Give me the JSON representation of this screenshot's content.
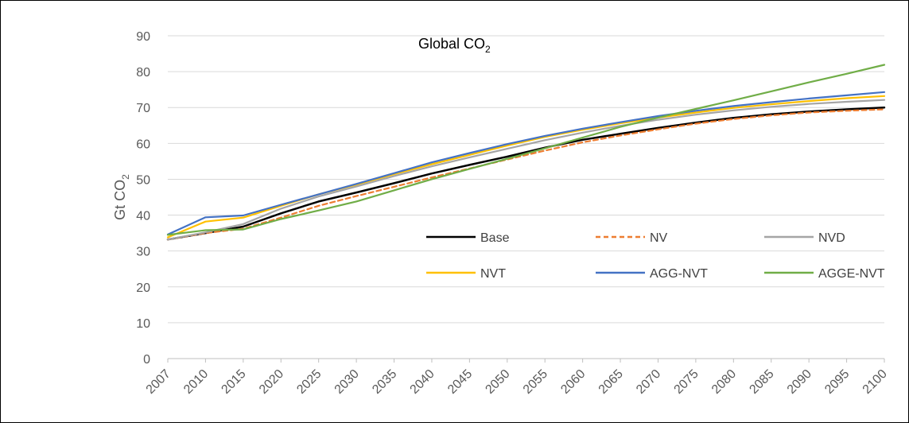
{
  "chart_data": {
    "type": "line",
    "title": "Global CO",
    "title_subscript": "2",
    "ylabel": "Gt CO",
    "ylabel_subscript": "2",
    "xlabel": "",
    "ylim": [
      0,
      90
    ],
    "yticks": [
      0,
      10,
      20,
      30,
      40,
      50,
      60,
      70,
      80,
      90
    ],
    "grid": true,
    "legend_position": "inside-middle",
    "categories": [
      "2007",
      "2010",
      "2015",
      "2020",
      "2025",
      "2030",
      "2035",
      "2040",
      "2045",
      "2050",
      "2055",
      "2060",
      "2065",
      "2070",
      "2075",
      "2080",
      "2085",
      "2090",
      "2095",
      "2100"
    ],
    "series": [
      {
        "name": "Base",
        "color": "#000000",
        "dash": "solid",
        "values": [
          33.2,
          35.0,
          36.8,
          40.5,
          43.8,
          46.3,
          48.9,
          51.6,
          54.0,
          56.3,
          58.8,
          61.0,
          62.7,
          64.3,
          65.8,
          67.1,
          68.1,
          68.9,
          69.5,
          70.0
        ]
      },
      {
        "name": "NV",
        "color": "#ED7D31",
        "dash": "dashed",
        "values": [
          33.2,
          35.0,
          36.2,
          39.3,
          42.6,
          45.3,
          47.9,
          50.5,
          53.0,
          55.5,
          58.0,
          60.3,
          62.2,
          63.9,
          65.5,
          66.8,
          67.8,
          68.6,
          69.1,
          69.5
        ]
      },
      {
        "name": "NVD",
        "color": "#A5A5A5",
        "dash": "solid",
        "values": [
          33.2,
          35.2,
          37.5,
          41.8,
          45.2,
          48.0,
          50.9,
          53.6,
          56.1,
          58.5,
          60.9,
          63.0,
          64.9,
          66.6,
          68.0,
          69.2,
          70.2,
          71.0,
          71.6,
          72.1
        ]
      },
      {
        "name": "NVT",
        "color": "#FFC000",
        "dash": "solid",
        "values": [
          33.8,
          38.2,
          39.3,
          42.6,
          45.8,
          48.5,
          51.4,
          54.2,
          56.8,
          59.4,
          61.8,
          63.8,
          65.6,
          67.2,
          68.6,
          69.9,
          70.9,
          71.8,
          72.6,
          73.2
        ]
      },
      {
        "name": "AGG-NVT",
        "color": "#4472C4",
        "dash": "solid",
        "values": [
          34.6,
          39.4,
          39.9,
          42.9,
          45.8,
          48.7,
          51.7,
          54.7,
          57.3,
          59.8,
          62.1,
          64.1,
          65.9,
          67.6,
          69.1,
          70.4,
          71.5,
          72.5,
          73.4,
          74.3
        ]
      },
      {
        "name": "AGGE-NVT",
        "color": "#70AD47",
        "dash": "solid",
        "values": [
          34.5,
          35.8,
          36.0,
          38.9,
          41.3,
          43.8,
          46.9,
          50.0,
          52.9,
          55.7,
          58.6,
          61.6,
          64.6,
          67.2,
          69.6,
          72.0,
          74.5,
          77.0,
          79.4,
          81.9
        ]
      }
    ]
  }
}
